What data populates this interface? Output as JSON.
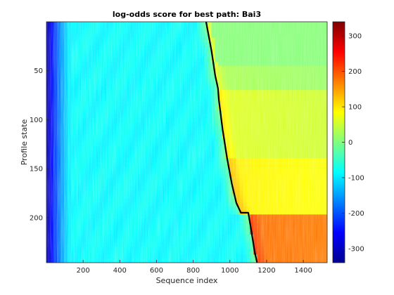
{
  "chart_data": {
    "type": "heatmap",
    "title": "log-odds score for best path: Bai3",
    "xlabel": "Sequence index",
    "ylabel": "Profile state",
    "xlim": [
      0,
      1530
    ],
    "ylim": [
      246,
      0
    ],
    "x_ticks": [
      200,
      400,
      600,
      800,
      1000,
      1200,
      1400
    ],
    "y_ticks": [
      50,
      100,
      150,
      200
    ],
    "colorbar": {
      "range": [
        -340,
        340
      ],
      "ticks": [
        300,
        200,
        100,
        0,
        -100,
        -200,
        -300
      ],
      "colormap": "jet"
    },
    "best_path": {
      "x": [
        870,
        900,
        920,
        935,
        940,
        960,
        985,
        1010,
        1035,
        1060,
        1070,
        1100,
        1118,
        1135,
        1148
      ],
      "y": [
        0,
        30,
        55,
        68,
        80,
        110,
        140,
        165,
        185,
        195,
        195,
        195,
        215,
        235,
        246
      ]
    },
    "grid": false
  }
}
